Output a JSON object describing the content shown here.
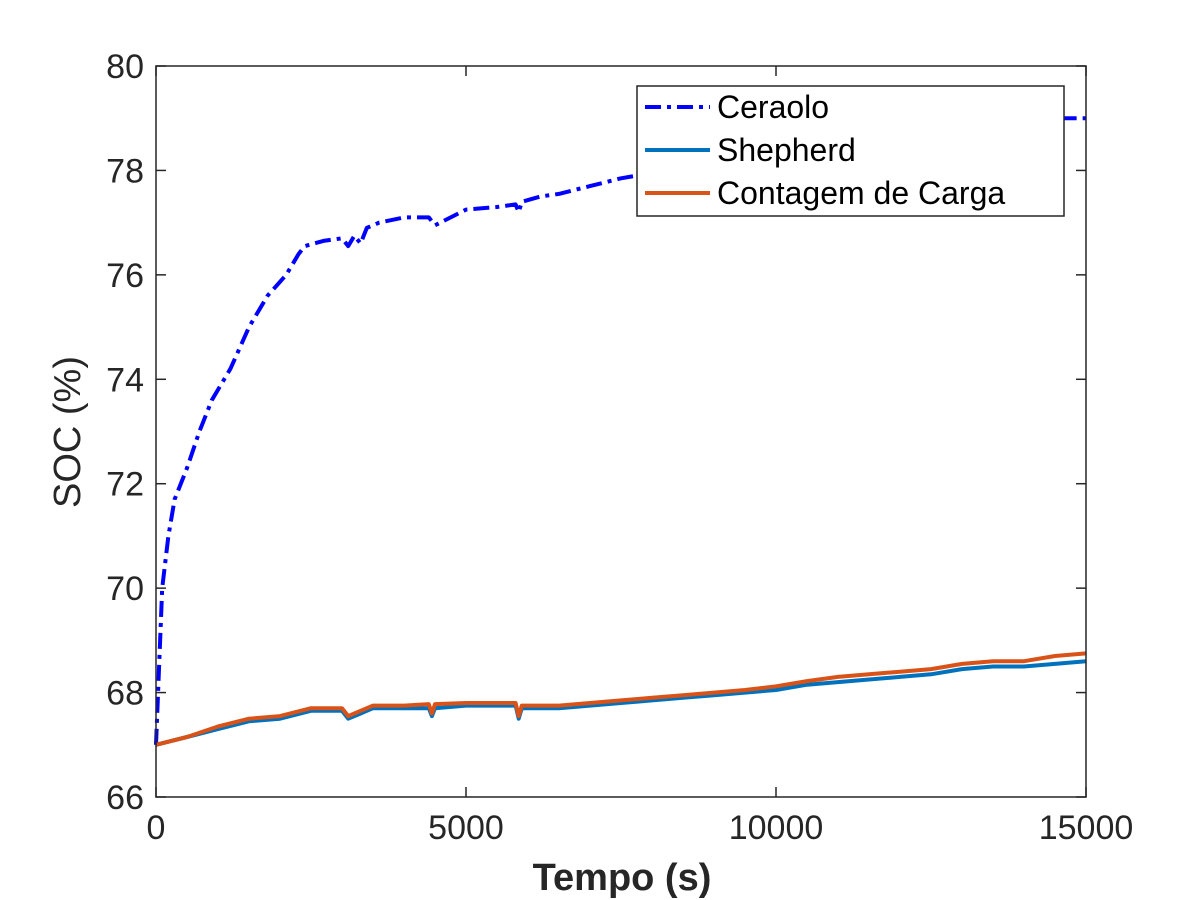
{
  "chart_data": {
    "type": "line",
    "title": "",
    "xlabel": "Tempo (s)",
    "ylabel": "SOC (%)",
    "xlim": [
      0,
      15000
    ],
    "ylim": [
      66,
      80
    ],
    "xticks": [
      0,
      5000,
      10000,
      15000
    ],
    "yticks": [
      66,
      68,
      70,
      72,
      74,
      76,
      78,
      80
    ],
    "xtick_labels": [
      "0",
      "5000",
      "10000",
      "15000"
    ],
    "ytick_labels": [
      "66",
      "68",
      "70",
      "72",
      "74",
      "76",
      "78",
      "80"
    ],
    "grid": false,
    "legend_position": "top-right",
    "series": [
      {
        "name": "Ceraolo",
        "color": "#0000ff",
        "style": "dash-dot",
        "x": [
          0,
          100,
          200,
          300,
          500,
          700,
          900,
          1200,
          1500,
          1800,
          2100,
          2300,
          2400,
          2700,
          3000,
          3100,
          3200,
          3300,
          3400,
          3600,
          4000,
          4400,
          4500,
          5000,
          5500,
          5800,
          5850,
          5900,
          6200,
          6500,
          7000,
          7500,
          8000,
          9000,
          10000,
          11000,
          12000,
          13000,
          14000,
          15000
        ],
        "y": [
          67.0,
          70.0,
          71.0,
          71.7,
          72.3,
          73.0,
          73.6,
          74.2,
          75.0,
          75.6,
          76.0,
          76.4,
          76.55,
          76.65,
          76.7,
          76.55,
          76.75,
          76.6,
          76.9,
          77.0,
          77.1,
          77.1,
          76.95,
          77.25,
          77.3,
          77.35,
          77.2,
          77.4,
          77.5,
          77.55,
          77.7,
          77.85,
          77.95,
          78.1,
          78.3,
          78.5,
          78.7,
          78.85,
          79.0,
          79.0
        ]
      },
      {
        "name": "Shepherd",
        "color": "#0072bd",
        "style": "solid",
        "x": [
          0,
          500,
          1000,
          1500,
          2000,
          2500,
          3000,
          3100,
          3300,
          3500,
          4000,
          4400,
          4450,
          4500,
          5000,
          5500,
          5800,
          5850,
          5900,
          6500,
          7000,
          7500,
          8000,
          8500,
          9000,
          9500,
          10000,
          10500,
          11000,
          11500,
          12000,
          12500,
          13000,
          13500,
          14000,
          14500,
          15000
        ],
        "y": [
          67.0,
          67.15,
          67.3,
          67.45,
          67.5,
          67.65,
          67.65,
          67.5,
          67.6,
          67.7,
          67.7,
          67.7,
          67.55,
          67.7,
          67.75,
          67.75,
          67.75,
          67.5,
          67.7,
          67.7,
          67.75,
          67.8,
          67.85,
          67.9,
          67.95,
          68.0,
          68.05,
          68.15,
          68.2,
          68.25,
          68.3,
          68.35,
          68.45,
          68.5,
          68.5,
          68.55,
          68.6
        ]
      },
      {
        "name": "Contagem de Carga",
        "color": "#d95319",
        "style": "solid",
        "x": [
          0,
          500,
          1000,
          1500,
          2000,
          2500,
          3000,
          3100,
          3300,
          3500,
          4000,
          4400,
          4450,
          4500,
          5000,
          5500,
          5800,
          5850,
          5900,
          6500,
          7000,
          7500,
          8000,
          8500,
          9000,
          9500,
          10000,
          10500,
          11000,
          11500,
          12000,
          12500,
          13000,
          13500,
          14000,
          14500,
          15000
        ],
        "y": [
          67.0,
          67.15,
          67.35,
          67.5,
          67.55,
          67.7,
          67.7,
          67.55,
          67.65,
          67.75,
          67.75,
          67.78,
          67.6,
          67.78,
          67.8,
          67.8,
          67.8,
          67.55,
          67.75,
          67.75,
          67.8,
          67.85,
          67.9,
          67.95,
          68.0,
          68.05,
          68.12,
          68.22,
          68.3,
          68.35,
          68.4,
          68.45,
          68.55,
          68.6,
          68.6,
          68.7,
          68.75
        ]
      }
    ]
  }
}
